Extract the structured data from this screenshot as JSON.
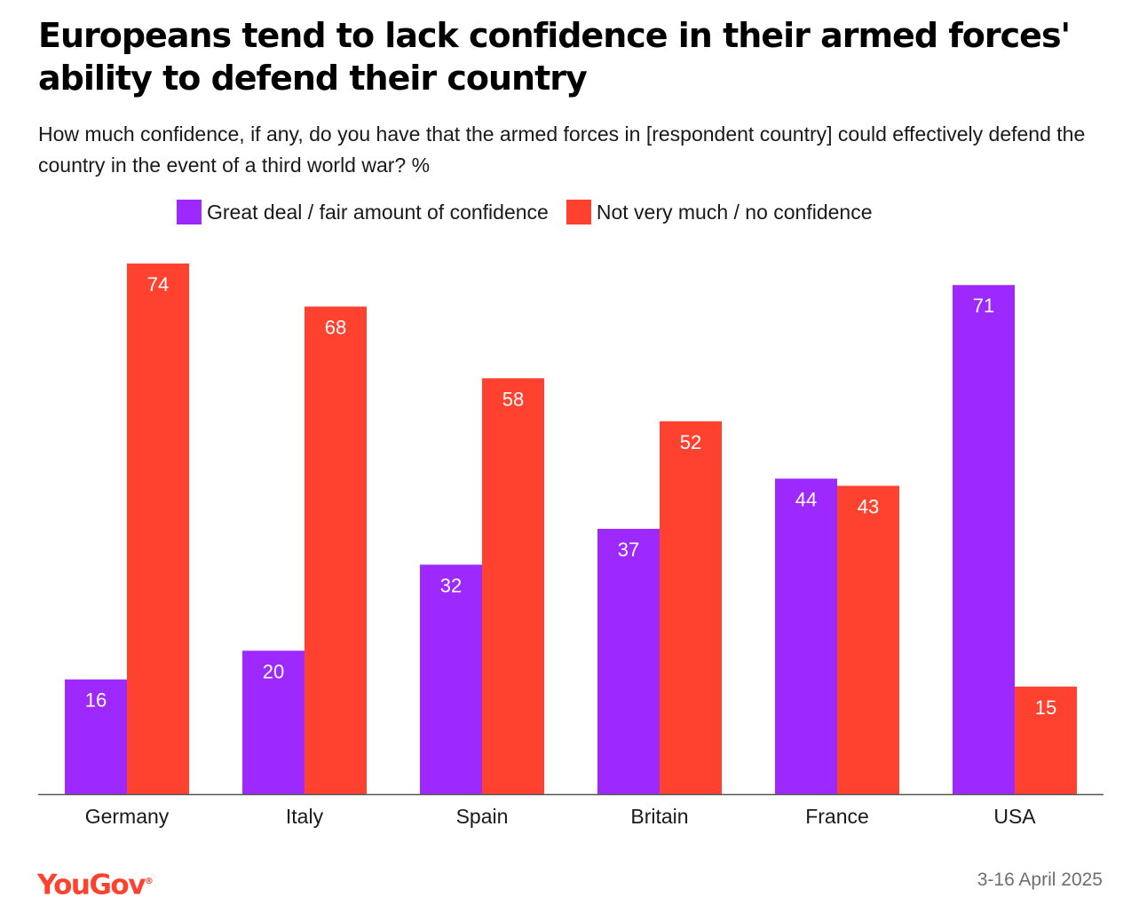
{
  "title": "Europeans tend to lack confidence in their armed forces' ability to defend their country",
  "subtitle": "How much confidence, if any, do you have that the armed forces in [respondent country] could effectively defend the country in the event of a third world war? %",
  "brand": "YouGov",
  "date": "3-16 April 2025",
  "colors": {
    "great_deal": "#9d29ff",
    "not_very_much": "#ff4130"
  },
  "chart_data": {
    "type": "bar",
    "categories": [
      "Germany",
      "Italy",
      "Spain",
      "Britain",
      "France",
      "USA"
    ],
    "series": [
      {
        "name": "Great deal / fair amount of confidence",
        "values": [
          16,
          20,
          32,
          37,
          44,
          71
        ],
        "color": "#9d29ff"
      },
      {
        "name": "Not very much / no confidence",
        "values": [
          74,
          68,
          58,
          52,
          43,
          15
        ],
        "color": "#ff4130"
      }
    ],
    "ylim": [
      0,
      74
    ],
    "grid": false,
    "legend": "top-center",
    "xlabel": "",
    "ylabel": ""
  }
}
